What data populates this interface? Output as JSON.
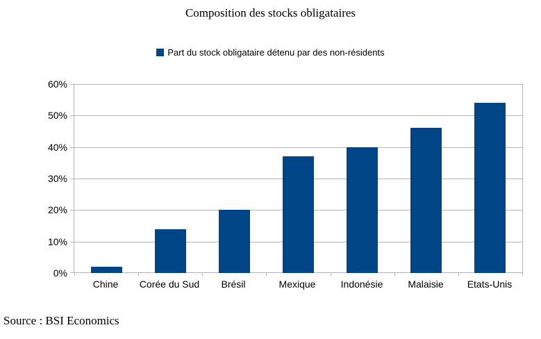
{
  "chart": {
    "title": "Composition des stocks obligataires",
    "legend": {
      "label": "Part du stock obligataire détenu par des non-résidents",
      "marker_color": "#004586"
    },
    "source": "Source : BSI Economics"
  },
  "chart_data": {
    "type": "bar",
    "title": "Composition des stocks obligataires",
    "categories": [
      "Chine",
      "Corée du Sud",
      "Brésil",
      "Mexique",
      "Indonésie",
      "Malaisie",
      "Etats-Unis"
    ],
    "series": [
      {
        "name": "Part du stock obligataire détenu par des non-résidents",
        "values": [
          2,
          14,
          20,
          37,
          40,
          46,
          54
        ],
        "color": "#004586"
      }
    ],
    "xlabel": "",
    "ylabel": "",
    "ylim": [
      0,
      60
    ],
    "ytick_step": 10,
    "yticks": [
      "0%",
      "10%",
      "20%",
      "30%",
      "40%",
      "50%",
      "60%"
    ],
    "grid": true,
    "gridline_color": "#b3b3b3",
    "legend_position": "top-center",
    "source": "Source : BSI Economics"
  }
}
